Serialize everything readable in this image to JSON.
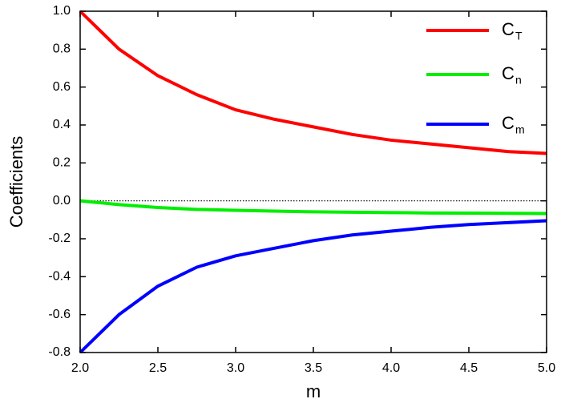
{
  "chart_data": {
    "type": "line",
    "x_label": "m",
    "y_label": "Coefficients",
    "x": [
      2.0,
      2.25,
      2.5,
      2.75,
      3.0,
      3.25,
      3.5,
      3.75,
      4.0,
      4.25,
      4.5,
      4.75,
      5.0
    ],
    "series": [
      {
        "name": "C",
        "subscript": "T",
        "color": "#ff0000",
        "values": [
          1.0,
          0.8,
          0.66,
          0.56,
          0.48,
          0.43,
          0.39,
          0.35,
          0.32,
          0.3,
          0.28,
          0.26,
          0.25
        ]
      },
      {
        "name": "C",
        "subscript": "n",
        "color": "#00ee00",
        "values": [
          0.0,
          -0.02,
          -0.035,
          -0.045,
          -0.05,
          -0.054,
          -0.058,
          -0.06,
          -0.062,
          -0.064,
          -0.065,
          -0.066,
          -0.067
        ]
      },
      {
        "name": "C",
        "subscript": "m",
        "color": "#0000ff",
        "values": [
          -0.8,
          -0.6,
          -0.45,
          -0.35,
          -0.29,
          -0.25,
          -0.21,
          -0.18,
          -0.16,
          -0.14,
          -0.125,
          -0.115,
          -0.105
        ]
      }
    ],
    "xlim": [
      2.0,
      5.0
    ],
    "xticks": [
      {
        "value": 2.0,
        "label": "2.0"
      },
      2.5,
      {
        "value": 3.0,
        "label": "3.0"
      },
      3.5,
      {
        "value": 4.0,
        "label": "4.0"
      },
      4.5,
      {
        "value": 5.0,
        "label": "5.0"
      }
    ],
    "ylim": [
      -0.8,
      1.0
    ],
    "yticks": [
      {
        "value": -0.8,
        "label": "-0.8"
      },
      {
        "value": -0.6,
        "label": "-0.6"
      },
      {
        "value": -0.4,
        "label": "-0.4"
      },
      {
        "value": -0.2,
        "label": "-0.2"
      },
      {
        "value": 0.0,
        "label": "0.0"
      },
      0.2,
      0.4,
      0.6,
      0.8,
      {
        "value": 1.0,
        "label": "1.0"
      }
    ],
    "reference_line": 0,
    "grid": false,
    "legend": "top-right"
  }
}
